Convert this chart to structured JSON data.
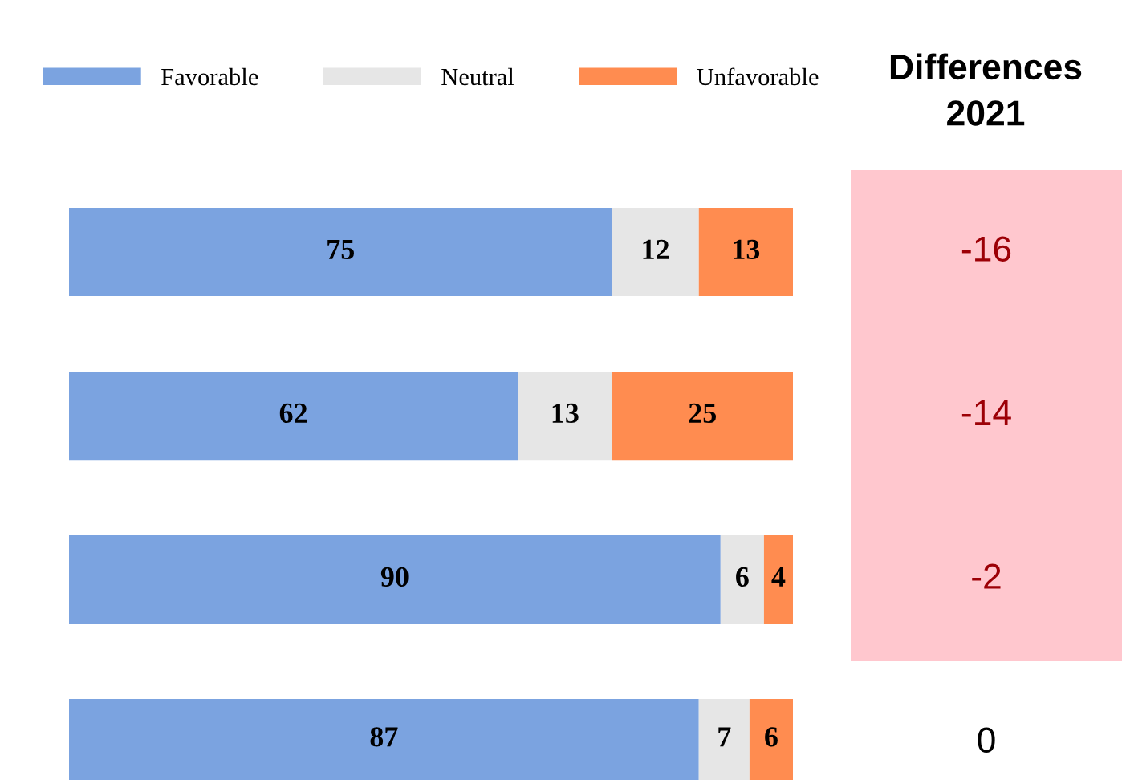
{
  "chart_data": [
    {
      "type": "bar",
      "orientation": "horizontal",
      "stacked": true,
      "categories": [
        null,
        null,
        null,
        null
      ],
      "series": [
        {
          "name": "Favorable",
          "color": "#7ba3e0",
          "values": [
            75,
            62,
            90,
            87
          ]
        },
        {
          "name": "Neutral",
          "color": "#e6e6e6",
          "values": [
            12,
            13,
            6,
            7
          ]
        },
        {
          "name": "Unfavorable",
          "color": "#ff8c50",
          "values": [
            13,
            25,
            4,
            6
          ]
        }
      ],
      "data_labels": true,
      "legend": "top",
      "grid": false
    },
    {
      "type": "other",
      "title": "Differences\n2021",
      "annotations": [
        "-16",
        "-14",
        "-2",
        "0"
      ],
      "colors": [
        "#ffc7ce",
        "#ffc7ce",
        "#ffc7ce",
        "#ffffff"
      ]
    }
  ]
}
